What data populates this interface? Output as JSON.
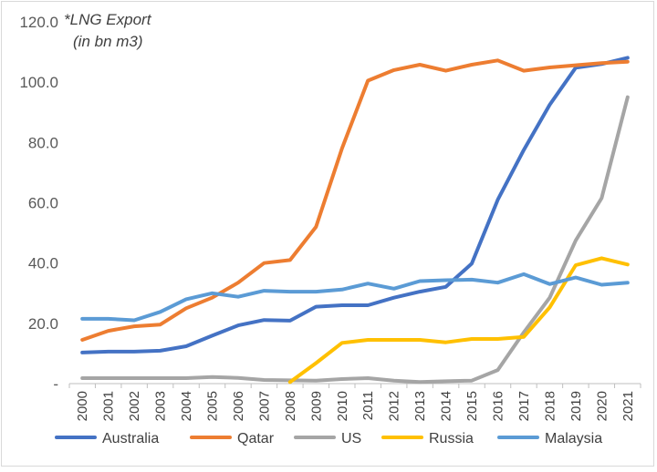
{
  "chart_data": {
    "type": "line",
    "title_lines": [
      "*LNG Export",
      "(in bn m3)"
    ],
    "xlabel": "",
    "ylabel": "",
    "ylim": [
      0,
      120
    ],
    "y_ticks": [
      {
        "value": 0,
        "label": "-"
      },
      {
        "value": 20,
        "label": "20.0"
      },
      {
        "value": 40,
        "label": "40.0"
      },
      {
        "value": 60,
        "label": "60.0"
      },
      {
        "value": 80,
        "label": "80.0"
      },
      {
        "value": 100,
        "label": "100.0"
      },
      {
        "value": 120,
        "label": "120.0"
      }
    ],
    "grid": false,
    "legend_position": "bottom",
    "categories": [
      "2000",
      "2001",
      "2002",
      "2003",
      "2004",
      "2005",
      "2006",
      "2007",
      "2008",
      "2009",
      "2010",
      "2011",
      "2012",
      "2013",
      "2014",
      "2015",
      "2016",
      "2017",
      "2018",
      "2019",
      "2020",
      "2021"
    ],
    "series": [
      {
        "name": "Australia",
        "color": "#4472c4",
        "values": [
          10.3,
          10.6,
          10.6,
          10.9,
          12.4,
          15.9,
          19.3,
          21.1,
          20.9,
          25.5,
          26.0,
          26.0,
          28.5,
          30.5,
          32.1,
          39.8,
          61.0,
          77.5,
          92.5,
          104.8,
          106.0,
          108.1
        ]
      },
      {
        "name": "Qatar",
        "color": "#ed7d31",
        "values": [
          14.5,
          17.5,
          19.0,
          19.6,
          25.0,
          28.5,
          33.5,
          40.0,
          41.0,
          52.0,
          78.0,
          100.5,
          104.0,
          105.8,
          103.8,
          105.8,
          107.2,
          103.8,
          104.9,
          105.6,
          106.3,
          106.8
        ]
      },
      {
        "name": "US",
        "color": "#a5a5a5",
        "values": [
          1.8,
          1.8,
          1.8,
          1.8,
          1.8,
          2.2,
          1.9,
          1.2,
          1.1,
          1.0,
          1.5,
          1.8,
          1.0,
          0.5,
          0.8,
          1.0,
          4.5,
          17.0,
          28.5,
          47.5,
          61.5,
          95.0
        ]
      },
      {
        "name": "Russia",
        "color": "#ffc000",
        "values": [
          null,
          null,
          null,
          null,
          null,
          null,
          null,
          null,
          0.5,
          6.8,
          13.5,
          14.5,
          14.5,
          14.5,
          13.7,
          14.8,
          14.8,
          15.5,
          25.3,
          39.3,
          41.6,
          39.5
        ]
      },
      {
        "name": "Malaysia",
        "color": "#5b9bd5",
        "values": [
          21.5,
          21.5,
          21.0,
          23.8,
          28.0,
          30.0,
          28.8,
          30.8,
          30.5,
          30.5,
          31.2,
          33.2,
          31.5,
          34.0,
          34.3,
          34.5,
          33.5,
          36.3,
          33.0,
          35.2,
          32.8,
          33.5
        ]
      }
    ]
  }
}
